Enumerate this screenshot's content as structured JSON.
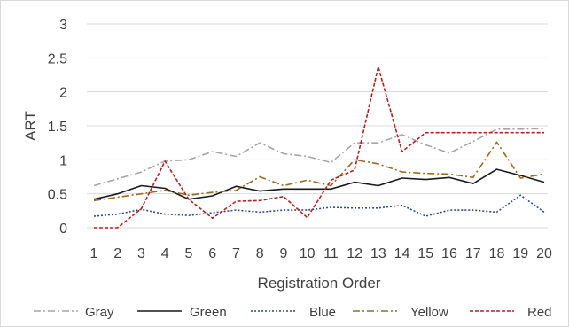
{
  "chart_data": {
    "type": "line",
    "title": "",
    "xlabel": "Registration Order",
    "ylabel": "ART",
    "x": [
      1,
      2,
      3,
      4,
      5,
      6,
      7,
      8,
      9,
      10,
      11,
      12,
      13,
      14,
      15,
      16,
      17,
      18,
      19,
      20
    ],
    "ylim": [
      0,
      3
    ],
    "yticks": [
      "0",
      "0.5",
      "1",
      "1.5",
      "2",
      "2.5",
      "3"
    ],
    "xticks": [
      "1",
      "2",
      "3",
      "4",
      "5",
      "6",
      "7",
      "8",
      "9",
      "10",
      "11",
      "12",
      "13",
      "14",
      "15",
      "16",
      "17",
      "18",
      "19",
      "20"
    ],
    "grid": "horizontal",
    "legend": "bottom",
    "series": [
      {
        "name": "Gray",
        "color": "#a6a6a6",
        "dash": "8,3,2,3",
        "values": [
          0.62,
          0.72,
          0.82,
          0.98,
          1.0,
          1.12,
          1.05,
          1.25,
          1.09,
          1.05,
          0.96,
          1.25,
          1.25,
          1.37,
          1.22,
          1.1,
          1.27,
          1.45,
          1.45,
          1.46
        ]
      },
      {
        "name": "Green",
        "color": "#1a1a1a",
        "dash": "",
        "values": [
          0.42,
          0.5,
          0.62,
          0.58,
          0.42,
          0.47,
          0.61,
          0.54,
          0.57,
          0.57,
          0.57,
          0.67,
          0.62,
          0.73,
          0.71,
          0.74,
          0.65,
          0.86,
          0.77,
          0.67
        ]
      },
      {
        "name": "Blue",
        "color": "#2f4b8c",
        "dash": "2,2",
        "values": [
          0.17,
          0.2,
          0.27,
          0.2,
          0.18,
          0.22,
          0.26,
          0.23,
          0.26,
          0.26,
          0.3,
          0.29,
          0.29,
          0.33,
          0.17,
          0.26,
          0.26,
          0.23,
          0.48,
          0.23
        ]
      },
      {
        "name": "Yellow",
        "color": "#9c6b1f",
        "dash": "8,3,2,3",
        "values": [
          0.4,
          0.45,
          0.5,
          0.55,
          0.48,
          0.52,
          0.55,
          0.75,
          0.62,
          0.7,
          0.62,
          1.0,
          0.94,
          0.82,
          0.8,
          0.79,
          0.74,
          1.26,
          0.73,
          0.79
        ]
      },
      {
        "name": "Red",
        "color": "#b22222",
        "dash": "4,2",
        "values": [
          0.0,
          0.0,
          0.28,
          0.98,
          0.42,
          0.14,
          0.39,
          0.4,
          0.46,
          0.15,
          0.7,
          0.85,
          2.37,
          1.12,
          1.4,
          1.4,
          1.4,
          1.4,
          1.4,
          1.4
        ]
      }
    ]
  }
}
